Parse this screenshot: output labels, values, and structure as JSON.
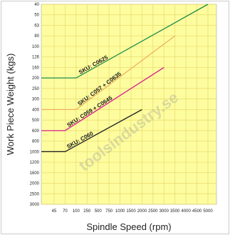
{
  "chart_data": {
    "type": "line",
    "xlabel": "Spindle Speed (rpm)",
    "ylabel": "Work Piece Weight (kgs)",
    "x_ticks": [
      "45",
      "70",
      "100",
      "250",
      "500",
      "750",
      "1000",
      "1500",
      "2000",
      "2500",
      "3000",
      "3500",
      "4000",
      "4500",
      "5000"
    ],
    "y_ticks": [
      "40",
      "50",
      "63",
      "80",
      "100",
      "126",
      "160",
      "200",
      "250",
      "300",
      "400",
      "500",
      "600",
      "800",
      "1000",
      "1200",
      "1600",
      "2000",
      "2500",
      "3000"
    ],
    "x_scale": "categorical",
    "y_scale": "categorical (reversed, top = 40)",
    "grid": true,
    "background_color": "#fdfd9f",
    "grid_color": "#e8d86a",
    "series": [
      {
        "name": "SKU: C0625",
        "color": "#1e8a4a",
        "points": [
          [
            "start",
            "200"
          ],
          [
            "100",
            "200"
          ],
          [
            "5000",
            "40"
          ]
        ]
      },
      {
        "name": "SKU: C057 + C0635",
        "color": "#f0b060",
        "points": [
          [
            "start",
            "400"
          ],
          [
            "100",
            "400"
          ],
          [
            "3500",
            "80"
          ]
        ]
      },
      {
        "name": "SKU: C059 + C0645",
        "color": "#d81b8f",
        "points": [
          [
            "start",
            "600"
          ],
          [
            "70",
            "600"
          ],
          [
            "3000",
            "160"
          ]
        ]
      },
      {
        "name": "SKU: C060",
        "color": "#222222",
        "points": [
          [
            "start",
            "1000"
          ],
          [
            "70",
            "1000"
          ],
          [
            "2000",
            "400"
          ]
        ]
      }
    ],
    "watermark": "toolsindustry.se"
  }
}
